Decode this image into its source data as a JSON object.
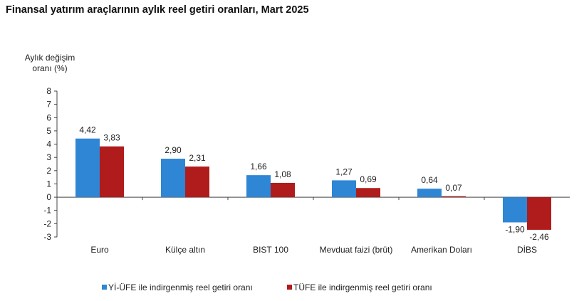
{
  "chart_data": {
    "type": "bar",
    "title": "Finansal yatırım araçlarının aylık reel getiri oranları, Mart 2025",
    "ylabel_lines": [
      "Aylık değişim",
      "oranı (%)"
    ],
    "xlabel": "",
    "ylim": [
      -3,
      8
    ],
    "yticks": [
      8,
      7,
      6,
      5,
      4,
      3,
      2,
      1,
      0,
      -1,
      -2,
      -3
    ],
    "categories": [
      "Euro",
      "Külçe altın",
      "BIST 100",
      "Mevduat faizi (brüt)",
      "Amerikan Doları",
      "DİBS"
    ],
    "series": [
      {
        "name": "Yİ-ÜFE ile indirgenmiş reel getiri oranı",
        "color": "#2e86d4",
        "values": [
          4.42,
          2.9,
          1.66,
          1.27,
          0.64,
          -1.9
        ],
        "labels": [
          "4,42",
          "2,90",
          "1,66",
          "1,27",
          "0,64",
          "-1,90"
        ]
      },
      {
        "name": "TÜFE ile indirgenmiş reel getiri oranı",
        "color": "#b01c1c",
        "values": [
          3.83,
          2.31,
          1.08,
          0.69,
          0.07,
          -2.46
        ],
        "labels": [
          "3,83",
          "2,31",
          "1,08",
          "0,69",
          "0,07",
          "-2,46"
        ]
      }
    ],
    "legend_position": "bottom",
    "grid": false
  }
}
